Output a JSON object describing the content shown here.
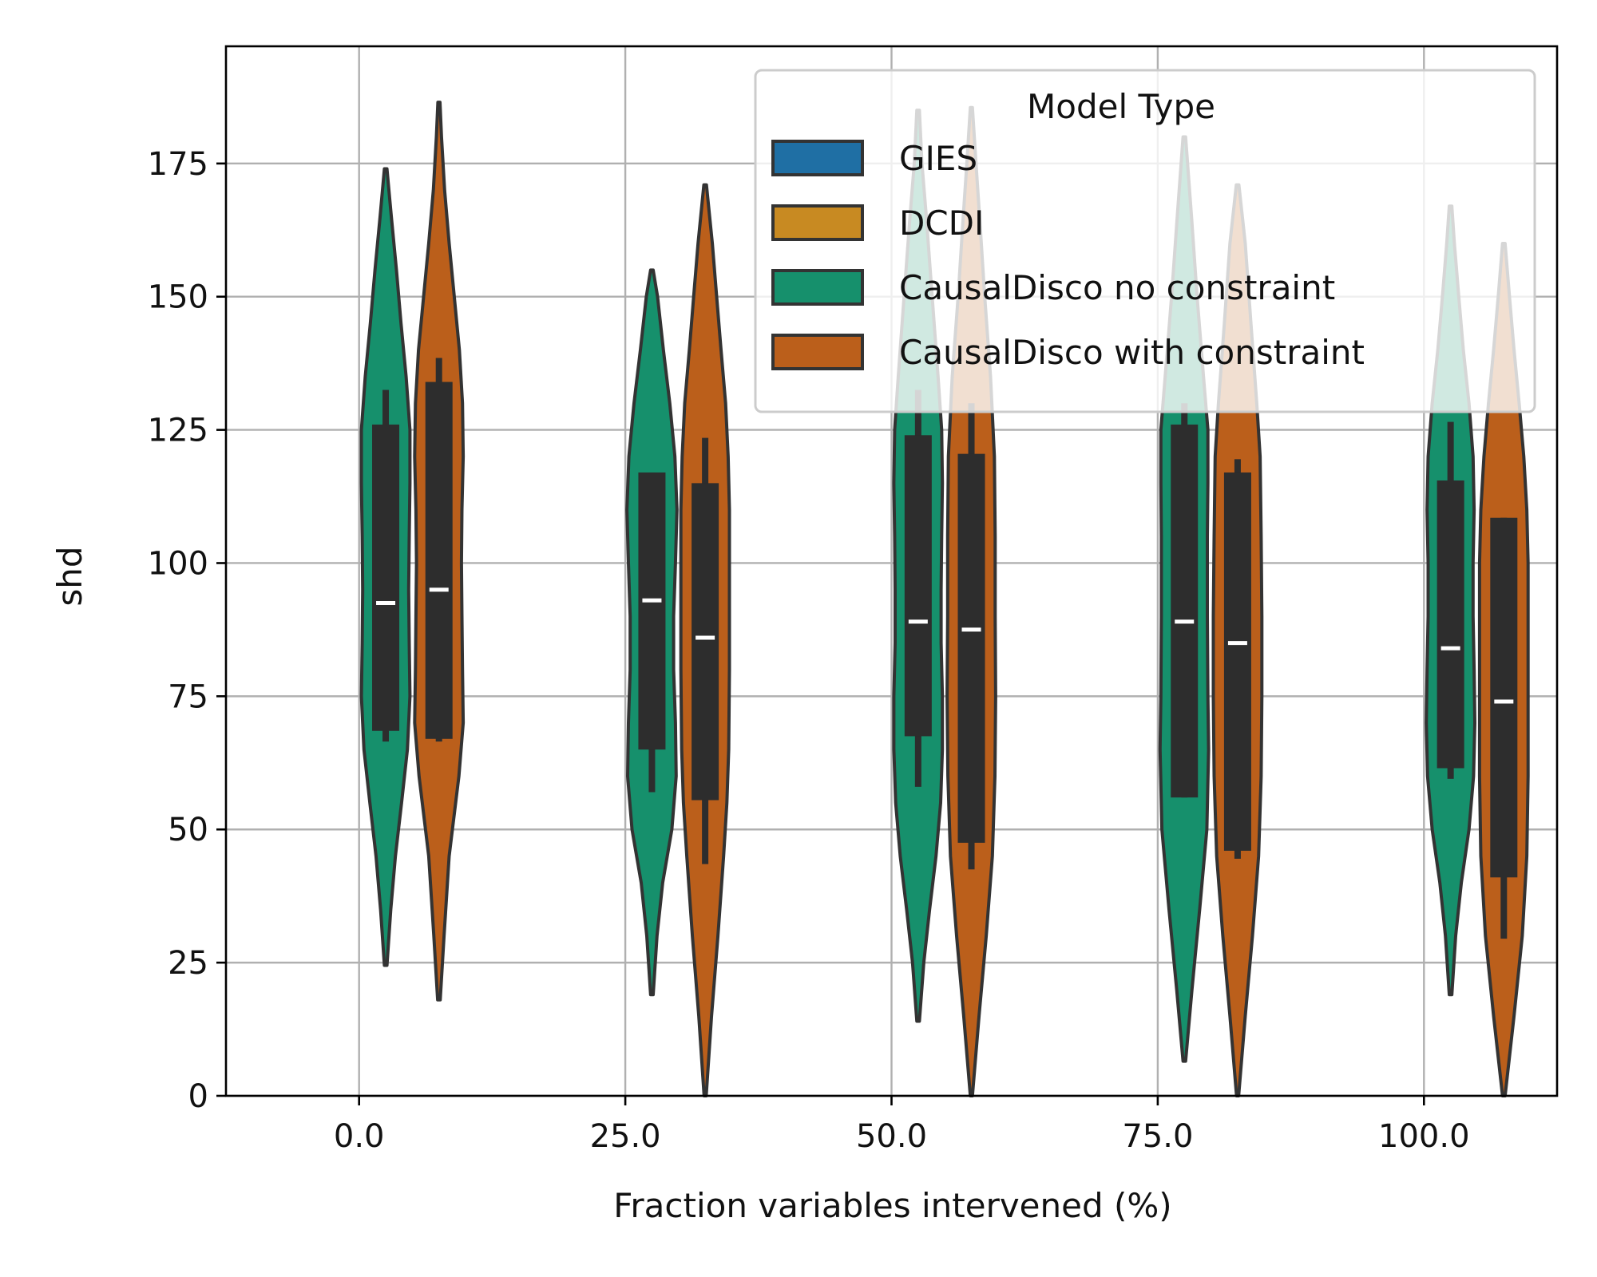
{
  "chart_data": {
    "type": "violin",
    "title": "",
    "xlabel": "Fraction variables intervened (%)",
    "ylabel": "shd",
    "categories": [
      "0.0",
      "25.0",
      "50.0",
      "75.0",
      "100.0"
    ],
    "category_values": [
      0,
      25,
      50,
      75,
      100
    ],
    "xlim": [
      -12.5,
      112.5
    ],
    "ylim": [
      0,
      197
    ],
    "yticks": [
      0,
      25,
      50,
      75,
      100,
      125,
      150,
      175
    ],
    "grid": true,
    "legend": {
      "title": "Model Type",
      "placement": "top-right",
      "entries": [
        "GIES",
        "DCDI",
        "CausalDisco no constraint",
        "CausalDisco with constraint"
      ]
    },
    "colors": {
      "GIES": "#1f6fa4",
      "DCDI": "#c88a22",
      "CausalDisco no constraint": "#16906c",
      "CausalDisco with constraint": "#bb5f1b",
      "outline": "#333333",
      "box": "#2d2d2d",
      "median": "#ffffff",
      "grid": "#b0b0b0"
    },
    "series": [
      {
        "name": "GIES",
        "values": []
      },
      {
        "name": "DCDI",
        "values": []
      },
      {
        "name": "CausalDisco no constraint",
        "offset": 2.5,
        "violins": [
          {
            "x": 0,
            "min": 24.5,
            "q1": 68.5,
            "median": 92.5,
            "q3": 126,
            "max": 174,
            "whisker_low": 66.5,
            "whisker_high": 132.5,
            "profile": [
              [
                24.5,
                0.05
              ],
              [
                35,
                0.2
              ],
              [
                45,
                0.38
              ],
              [
                55,
                0.62
              ],
              [
                65,
                0.85
              ],
              [
                75,
                0.95
              ],
              [
                85,
                0.92
              ],
              [
                95,
                0.9
              ],
              [
                105,
                0.92
              ],
              [
                115,
                0.95
              ],
              [
                125,
                0.95
              ],
              [
                135,
                0.8
              ],
              [
                145,
                0.6
              ],
              [
                155,
                0.42
              ],
              [
                165,
                0.22
              ],
              [
                174,
                0.05
              ]
            ]
          },
          {
            "x": 25,
            "min": 19,
            "q1": 65,
            "median": 93,
            "q3": 117,
            "max": 155,
            "whisker_low": 57,
            "whisker_high": 117,
            "profile": [
              [
                19,
                0.05
              ],
              [
                30,
                0.2
              ],
              [
                40,
                0.42
              ],
              [
                50,
                0.78
              ],
              [
                60,
                0.95
              ],
              [
                70,
                0.92
              ],
              [
                80,
                0.85
              ],
              [
                90,
                0.85
              ],
              [
                100,
                0.92
              ],
              [
                110,
                0.98
              ],
              [
                120,
                0.9
              ],
              [
                130,
                0.7
              ],
              [
                140,
                0.45
              ],
              [
                150,
                0.22
              ],
              [
                155,
                0.05
              ]
            ]
          },
          {
            "x": 50,
            "min": 14,
            "q1": 67.5,
            "median": 89,
            "q3": 124,
            "max": 185,
            "whisker_low": 58,
            "whisker_high": 132.5,
            "profile": [
              [
                14,
                0.05
              ],
              [
                25,
                0.22
              ],
              [
                35,
                0.45
              ],
              [
                45,
                0.7
              ],
              [
                55,
                0.88
              ],
              [
                65,
                0.95
              ],
              [
                75,
                0.95
              ],
              [
                85,
                0.9
              ],
              [
                95,
                0.9
              ],
              [
                105,
                0.92
              ],
              [
                115,
                0.95
              ],
              [
                125,
                0.92
              ],
              [
                135,
                0.78
              ],
              [
                150,
                0.55
              ],
              [
                165,
                0.32
              ],
              [
                175,
                0.15
              ],
              [
                185,
                0.05
              ]
            ]
          },
          {
            "x": 75,
            "min": 6.5,
            "q1": 56,
            "median": 89,
            "q3": 126,
            "max": 180,
            "whisker_low": 56,
            "whisker_high": 130,
            "profile": [
              [
                6.5,
                0.05
              ],
              [
                20,
                0.3
              ],
              [
                35,
                0.6
              ],
              [
                50,
                0.88
              ],
              [
                65,
                0.95
              ],
              [
                75,
                0.92
              ],
              [
                90,
                0.9
              ],
              [
                105,
                0.9
              ],
              [
                115,
                0.92
              ],
              [
                125,
                0.92
              ],
              [
                135,
                0.75
              ],
              [
                150,
                0.5
              ],
              [
                165,
                0.28
              ],
              [
                180,
                0.05
              ]
            ]
          },
          {
            "x": 100,
            "min": 19,
            "q1": 61.5,
            "median": 84,
            "q3": 115.5,
            "max": 167,
            "whisker_low": 59.5,
            "whisker_high": 126.5,
            "profile": [
              [
                19,
                0.05
              ],
              [
                30,
                0.2
              ],
              [
                40,
                0.42
              ],
              [
                50,
                0.72
              ],
              [
                60,
                0.9
              ],
              [
                70,
                0.95
              ],
              [
                80,
                0.92
              ],
              [
                90,
                0.88
              ],
              [
                100,
                0.88
              ],
              [
                110,
                0.92
              ],
              [
                120,
                0.88
              ],
              [
                130,
                0.72
              ],
              [
                140,
                0.5
              ],
              [
                150,
                0.32
              ],
              [
                160,
                0.15
              ],
              [
                167,
                0.05
              ]
            ]
          }
        ]
      },
      {
        "name": "CausalDisco with constraint",
        "offset": 7.5,
        "violins": [
          {
            "x": 0,
            "min": 18,
            "q1": 67,
            "median": 95,
            "q3": 134,
            "max": 186.5,
            "whisker_low": 66.5,
            "whisker_high": 138.5,
            "profile": [
              [
                18,
                0.05
              ],
              [
                30,
                0.2
              ],
              [
                45,
                0.4
              ],
              [
                60,
                0.78
              ],
              [
                70,
                0.95
              ],
              [
                80,
                0.92
              ],
              [
                90,
                0.9
              ],
              [
                100,
                0.88
              ],
              [
                110,
                0.9
              ],
              [
                120,
                0.95
              ],
              [
                130,
                0.92
              ],
              [
                140,
                0.8
              ],
              [
                150,
                0.6
              ],
              [
                160,
                0.4
              ],
              [
                170,
                0.22
              ],
              [
                180,
                0.1
              ],
              [
                186.5,
                0.04
              ]
            ]
          },
          {
            "x": 25,
            "min": 0,
            "q1": 55.5,
            "median": 86,
            "q3": 115,
            "max": 171,
            "whisker_low": 43.5,
            "whisker_high": 123.5,
            "profile": [
              [
                0,
                0.04
              ],
              [
                15,
                0.25
              ],
              [
                30,
                0.5
              ],
              [
                45,
                0.72
              ],
              [
                55,
                0.85
              ],
              [
                65,
                0.92
              ],
              [
                80,
                0.95
              ],
              [
                95,
                0.95
              ],
              [
                110,
                0.95
              ],
              [
                120,
                0.9
              ],
              [
                130,
                0.8
              ],
              [
                140,
                0.62
              ],
              [
                150,
                0.45
              ],
              [
                160,
                0.28
              ],
              [
                171,
                0.05
              ]
            ]
          },
          {
            "x": 50,
            "min": 0,
            "q1": 47.5,
            "median": 87.5,
            "q3": 120.5,
            "max": 185.5,
            "whisker_low": 42.5,
            "whisker_high": 130,
            "profile": [
              [
                0,
                0.04
              ],
              [
                15,
                0.3
              ],
              [
                30,
                0.58
              ],
              [
                45,
                0.82
              ],
              [
                60,
                0.92
              ],
              [
                75,
                0.95
              ],
              [
                90,
                0.93
              ],
              [
                105,
                0.93
              ],
              [
                120,
                0.9
              ],
              [
                135,
                0.75
              ],
              [
                150,
                0.52
              ],
              [
                165,
                0.32
              ],
              [
                175,
                0.18
              ],
              [
                185.5,
                0.04
              ]
            ]
          },
          {
            "x": 75,
            "min": 0,
            "q1": 46,
            "median": 85,
            "q3": 117,
            "max": 171,
            "whisker_low": 44.5,
            "whisker_high": 119.5,
            "profile": [
              [
                0,
                0.04
              ],
              [
                15,
                0.3
              ],
              [
                30,
                0.58
              ],
              [
                45,
                0.82
              ],
              [
                60,
                0.92
              ],
              [
                75,
                0.95
              ],
              [
                90,
                0.95
              ],
              [
                105,
                0.92
              ],
              [
                120,
                0.88
              ],
              [
                130,
                0.75
              ],
              [
                145,
                0.52
              ],
              [
                160,
                0.3
              ],
              [
                171,
                0.05
              ]
            ]
          },
          {
            "x": 100,
            "min": 0,
            "q1": 41,
            "median": 74,
            "q3": 108.5,
            "max": 160,
            "whisker_low": 29.5,
            "whisker_high": 108.5,
            "profile": [
              [
                0,
                0.05
              ],
              [
                15,
                0.4
              ],
              [
                30,
                0.72
              ],
              [
                45,
                0.9
              ],
              [
                60,
                0.95
              ],
              [
                75,
                0.95
              ],
              [
                90,
                0.95
              ],
              [
                100,
                0.95
              ],
              [
                110,
                0.9
              ],
              [
                120,
                0.78
              ],
              [
                130,
                0.6
              ],
              [
                140,
                0.4
              ],
              [
                150,
                0.22
              ],
              [
                160,
                0.05
              ]
            ]
          }
        ]
      }
    ]
  }
}
